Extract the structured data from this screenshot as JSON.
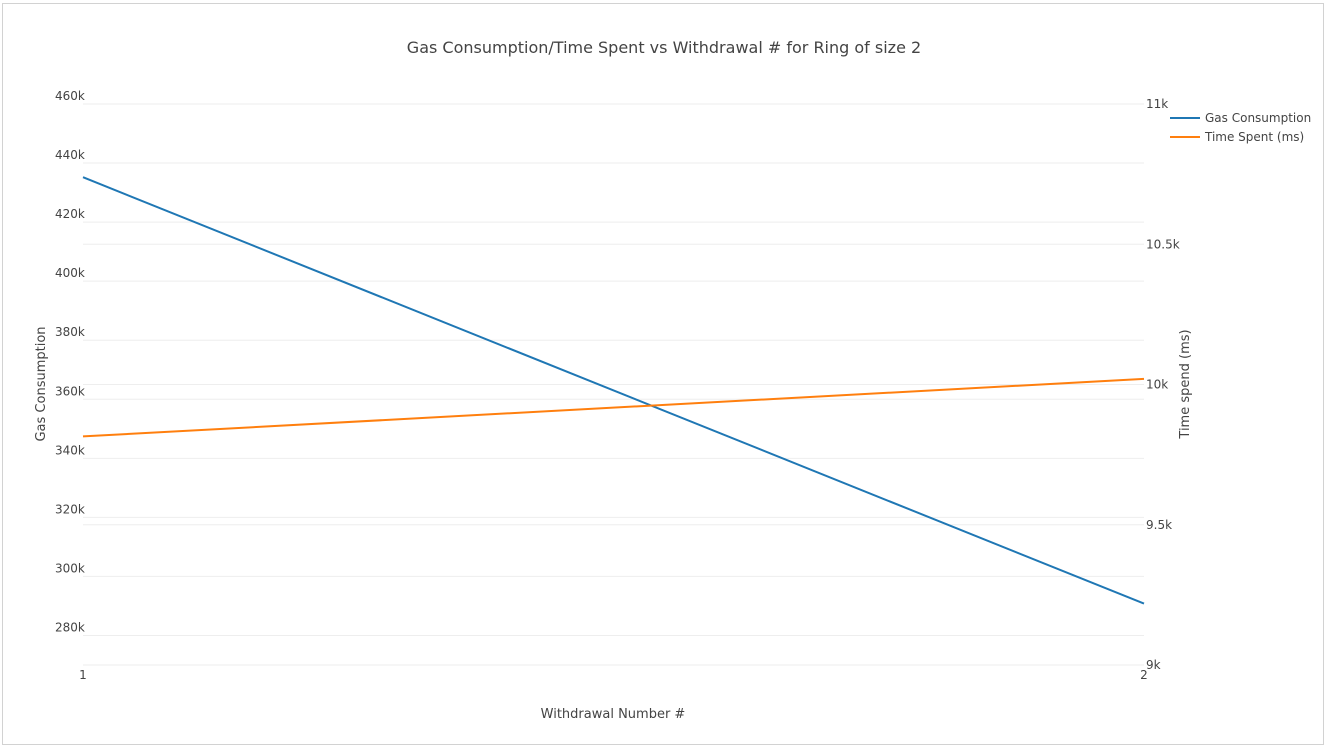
{
  "chart_data": {
    "type": "line",
    "title": "Gas Consumption/Time Spent vs Withdrawal # for Ring of size 2",
    "xlabel": "Withdrawal Number #",
    "ylabel": "Gas Consumption",
    "y2label": "Time spend (ms)",
    "x": [
      1,
      2
    ],
    "x_tick_labels": [
      "1",
      "2"
    ],
    "ylim": [
      270000,
      460000
    ],
    "y_ticks": [
      280000,
      300000,
      320000,
      340000,
      360000,
      380000,
      400000,
      420000,
      440000,
      460000
    ],
    "y_tick_labels": [
      "280k",
      "300k",
      "320k",
      "340k",
      "360k",
      "380k",
      "400k",
      "420k",
      "440k",
      "460k"
    ],
    "y2lim": [
      9000,
      11000
    ],
    "y2_ticks": [
      9000,
      9500,
      10000,
      10500,
      11000
    ],
    "y2_tick_labels": [
      "9k",
      "9.5k",
      "10k",
      "10.5k",
      "11k"
    ],
    "grid": true,
    "legend_position": "top-right",
    "series": [
      {
        "name": "Gas Consumption",
        "axis": "left",
        "color": "#1f77b4",
        "values": [
          435200,
          290800
        ]
      },
      {
        "name": "Time Spent (ms)",
        "axis": "right",
        "color": "#ff7f0e",
        "values": [
          9815,
          10020
        ]
      }
    ]
  }
}
